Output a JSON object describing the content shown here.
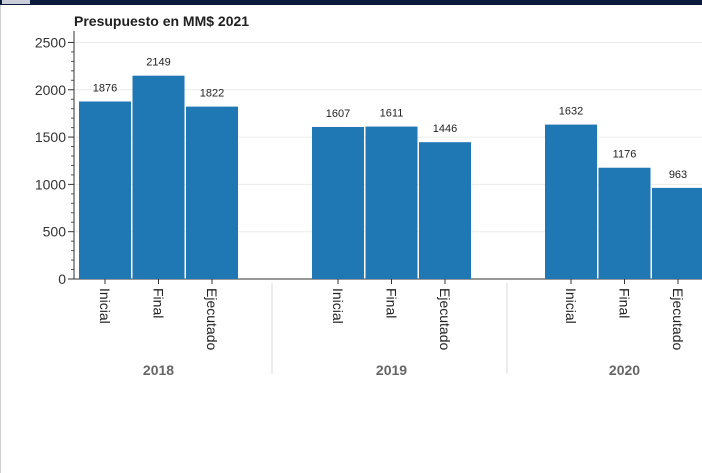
{
  "chart_data": {
    "type": "bar",
    "title": "Presupuesto en MM$ 2021",
    "xlabel": "",
    "ylabel": "",
    "ylim": [
      0,
      2600
    ],
    "yticks": [
      "0",
      "500",
      "1000",
      "1500",
      "2000",
      "2500"
    ],
    "groups": [
      {
        "name": "2018",
        "categories": [
          "Inicial",
          "Final",
          "Ejecutado"
        ],
        "values": [
          1876,
          2149,
          1822
        ]
      },
      {
        "name": "2019",
        "categories": [
          "Inicial",
          "Final",
          "Ejecutado"
        ],
        "values": [
          1607,
          1611,
          1446
        ]
      },
      {
        "name": "2020",
        "categories": [
          "Inicial",
          "Final",
          "Ejecutado"
        ],
        "values": [
          1632,
          1176,
          963
        ]
      }
    ],
    "bar_color": "#1f77b4",
    "grid": true,
    "legend": "none"
  }
}
